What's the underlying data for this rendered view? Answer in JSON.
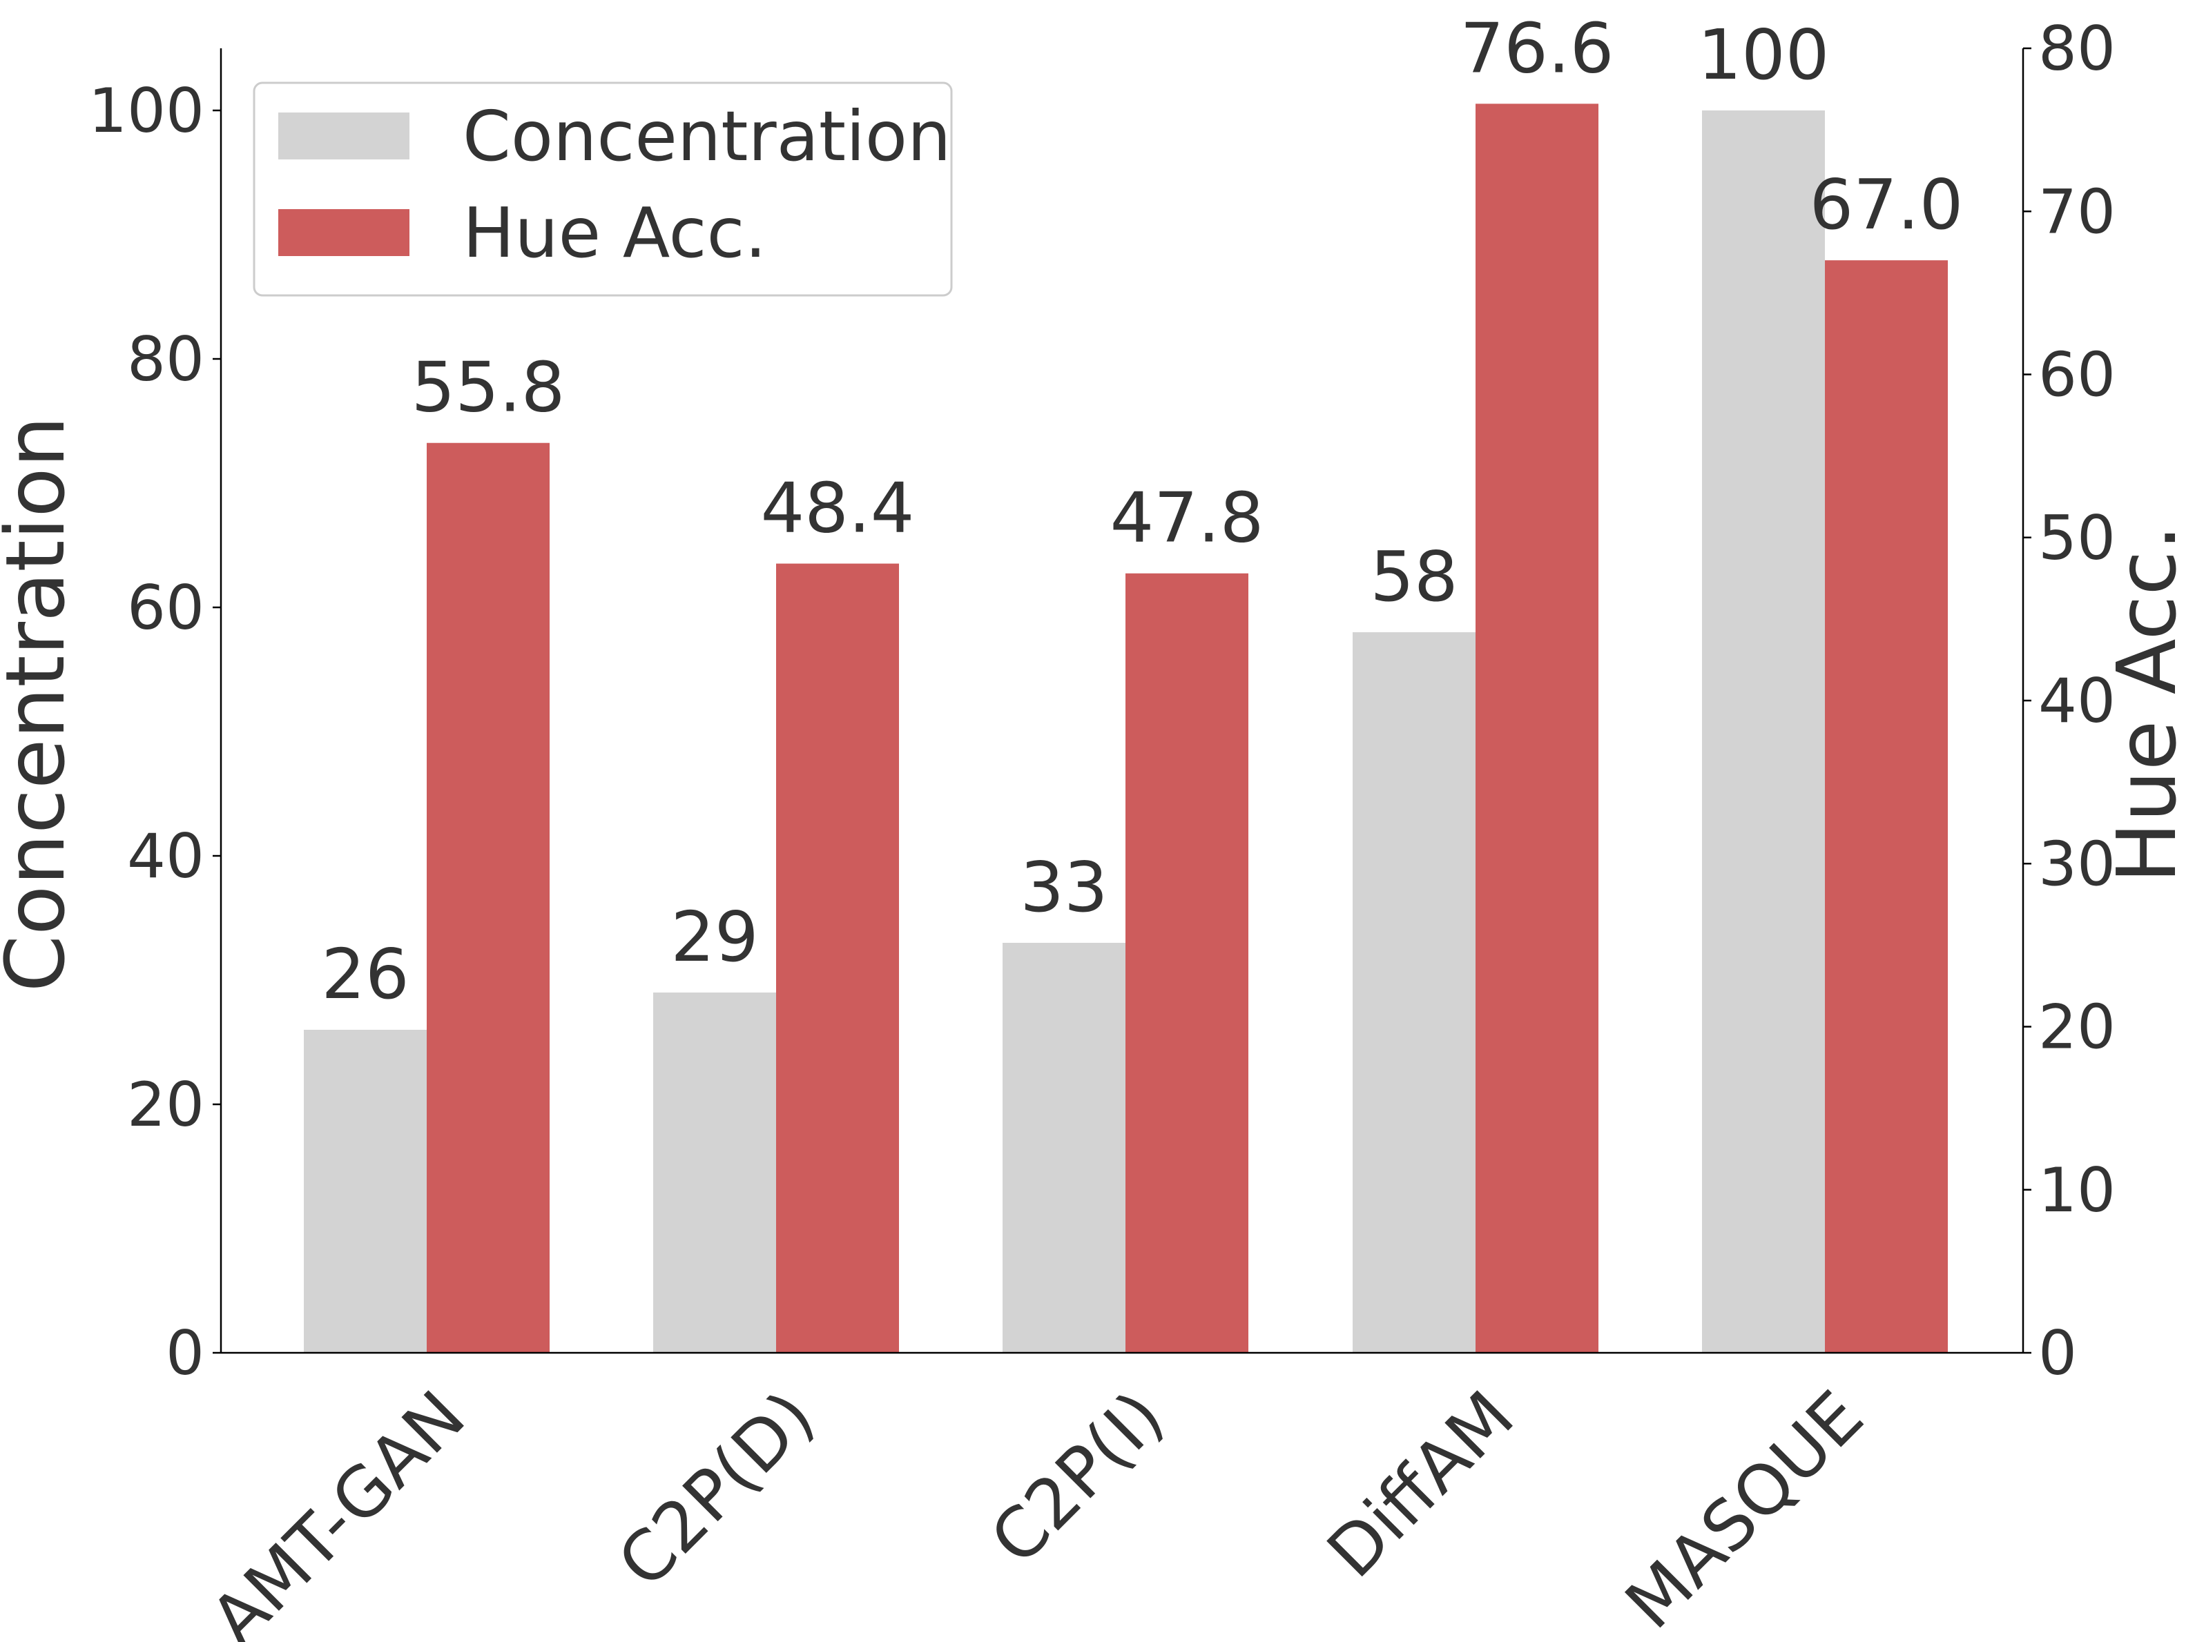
{
  "chart_data": {
    "type": "bar",
    "categories": [
      "AMT-GAN",
      "C2P(D)",
      "C2P(I)",
      "DiffAM",
      "MASQUE"
    ],
    "series": [
      {
        "name": "Concentration",
        "axis": "left",
        "color": "#d3d3d3",
        "values": [
          26,
          29,
          33,
          58,
          100
        ],
        "labels": [
          "26",
          "29",
          "33",
          "58",
          "100"
        ]
      },
      {
        "name": "Hue Acc.",
        "axis": "right",
        "color": "#cd5c5c",
        "values": [
          55.8,
          48.4,
          47.8,
          76.6,
          67.0
        ],
        "labels": [
          "55.8",
          "48.4",
          "47.8",
          "76.6",
          "67.0"
        ]
      }
    ],
    "ylabel": "Concentration",
    "ylabel_right": "Hue Acc.",
    "ylim": [
      0,
      105
    ],
    "ylim_right": [
      0,
      80
    ],
    "yticks": [
      "0",
      "20",
      "40",
      "60",
      "80",
      "100"
    ],
    "yticks_right": [
      "0",
      "10",
      "20",
      "30",
      "40",
      "50",
      "60",
      "70",
      "80"
    ],
    "legend": {
      "placement": "top-left",
      "entries": [
        "Concentration",
        "Hue Acc."
      ]
    },
    "grid": false
  }
}
